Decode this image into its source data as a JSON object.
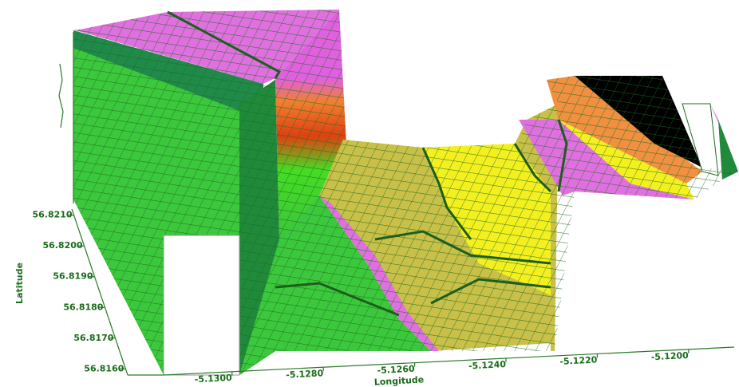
{
  "chart_data": {
    "type": "surface3d",
    "xlabel": "Longitude",
    "ylabel": "Latitude",
    "xlim": [
      -5.1315,
      -5.119
    ],
    "xticks": [
      {
        "value": -5.13,
        "label": "-5.1300"
      },
      {
        "value": -5.128,
        "label": "-5.1280"
      },
      {
        "value": -5.126,
        "label": "-5.1260"
      },
      {
        "value": -5.124,
        "label": "-5.1240"
      },
      {
        "value": -5.122,
        "label": "-5.1220"
      },
      {
        "value": -5.12,
        "label": "-5.1200"
      }
    ],
    "ylim": [
      56.8158,
      56.8212
    ],
    "yticks": [
      {
        "value": 56.821,
        "label": "56.8210"
      },
      {
        "value": 56.82,
        "label": "56.8200"
      },
      {
        "value": 56.819,
        "label": "56.8190"
      },
      {
        "value": 56.818,
        "label": "56.8180"
      },
      {
        "value": 56.817,
        "label": "56.8170"
      },
      {
        "value": 56.816,
        "label": "56.8160"
      }
    ]
  }
}
